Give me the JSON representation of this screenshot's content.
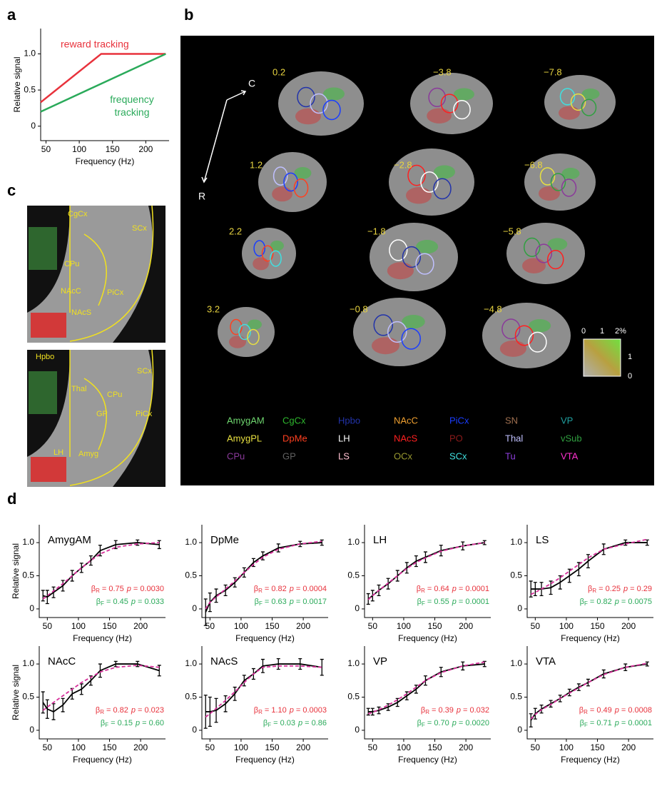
{
  "panel_labels": [
    "a",
    "b",
    "c",
    "d"
  ],
  "chart_data": [
    {
      "type": "line",
      "xlabel": "Frequency (Hz)",
      "ylabel": "Relative signal",
      "xlim": [
        42,
        235
      ],
      "ylim": [
        -0.2,
        1.35
      ],
      "xticks": [
        50,
        100,
        150,
        200
      ],
      "yticks": [
        0,
        0.5,
        {
          "value": 1,
          "label": "1.0"
        }
      ],
      "series": [
        {
          "name": "reward tracking",
          "color": "#e8323c",
          "x": [
            42,
            133,
            230
          ],
          "values": [
            0.33,
            1,
            1
          ]
        },
        {
          "name": "frequency tracking",
          "color": "#2aaa5a",
          "x": [
            42,
            230
          ],
          "values": [
            0.2,
            1
          ]
        }
      ]
    },
    {
      "type": "line",
      "title": "AmygAM",
      "xlabel": "Frequency (Hz)",
      "ylabel": "Relative signal",
      "x": [
        43,
        50,
        60,
        75,
        90,
        105,
        120,
        135,
        160,
        195,
        230
      ],
      "xlim": [
        37,
        240
      ],
      "ylim": [
        -0.13,
        1.27
      ],
      "xticks": [
        50,
        100,
        150,
        200
      ],
      "yticks": [
        0,
        0.5,
        {
          "value": 1,
          "label": "1.0"
        }
      ],
      "series": [
        {
          "color": "#000000",
          "values": [
            0.2,
            0.18,
            0.25,
            0.35,
            0.5,
            0.62,
            0.73,
            0.88,
            0.97,
            1.0,
            0.97
          ],
          "errors": [
            0.08,
            0.1,
            0.08,
            0.08,
            0.08,
            0.07,
            0.07,
            0.08,
            0.06,
            0.04,
            0.06
          ]
        },
        {
          "color": "#d6309a",
          "dashed": true,
          "values": [
            0.15,
            0.2,
            0.27,
            0.38,
            0.5,
            0.62,
            0.73,
            0.83,
            0.93,
            0.98,
            1.0
          ]
        }
      ],
      "stats": [
        {
          "color": "#e8323c",
          "beta": "β",
          "sub": "R",
          "value": "= 0.75",
          "p": "p",
          "p_value": "= 0.0030"
        },
        {
          "color": "#2aaa5a",
          "beta": "β",
          "sub": "F",
          "value": "= 0.45",
          "p": "p",
          "p_value": "= 0.033"
        }
      ]
    },
    {
      "type": "line",
      "title": "DpMe",
      "xlabel": "Frequency (Hz)",
      "x": [
        43,
        50,
        60,
        75,
        90,
        105,
        120,
        135,
        160,
        195,
        230
      ],
      "xlim": [
        37,
        240
      ],
      "ylim": [
        -0.13,
        1.27
      ],
      "xticks": [
        50,
        100,
        150,
        200
      ],
      "yticks": [
        0,
        0.5,
        {
          "value": 1,
          "label": "1.0"
        }
      ],
      "series": [
        {
          "color": "#000000",
          "values": [
            -0.05,
            0.1,
            0.2,
            0.28,
            0.4,
            0.55,
            0.7,
            0.8,
            0.92,
            0.98,
            1.0
          ],
          "errors": [
            0.2,
            0.14,
            0.1,
            0.08,
            0.07,
            0.07,
            0.06,
            0.06,
            0.06,
            0.04,
            0.04
          ]
        },
        {
          "color": "#d6309a",
          "dashed": true,
          "values": [
            0.0,
            0.1,
            0.18,
            0.3,
            0.42,
            0.55,
            0.67,
            0.78,
            0.9,
            0.98,
            1.02
          ]
        }
      ],
      "stats": [
        {
          "color": "#e8323c",
          "beta": "β",
          "sub": "R",
          "value": "= 0.82",
          "p": "p",
          "p_value": "= 0.0004"
        },
        {
          "color": "#2aaa5a",
          "beta": "β",
          "sub": "F",
          "value": "= 0.63",
          "p": "p",
          "p_value": "= 0.0017"
        }
      ]
    },
    {
      "type": "line",
      "title": "LH",
      "xlabel": "Frequency (Hz)",
      "x": [
        43,
        50,
        60,
        75,
        90,
        105,
        120,
        135,
        160,
        195,
        230
      ],
      "xlim": [
        37,
        240
      ],
      "ylim": [
        -0.13,
        1.27
      ],
      "xticks": [
        50,
        100,
        150,
        200
      ],
      "yticks": [
        0,
        0.5,
        {
          "value": 1,
          "label": "1.0"
        }
      ],
      "series": [
        {
          "color": "#000000",
          "values": [
            0.15,
            0.2,
            0.28,
            0.38,
            0.5,
            0.62,
            0.72,
            0.78,
            0.88,
            0.95,
            1.0
          ],
          "errors": [
            0.08,
            0.08,
            0.08,
            0.08,
            0.08,
            0.08,
            0.08,
            0.08,
            0.08,
            0.06,
            0.03
          ]
        },
        {
          "color": "#d6309a",
          "dashed": true,
          "values": [
            0.14,
            0.2,
            0.28,
            0.39,
            0.5,
            0.61,
            0.7,
            0.77,
            0.87,
            0.95,
            1.0
          ]
        }
      ],
      "stats": [
        {
          "color": "#e8323c",
          "beta": "β",
          "sub": "R",
          "value": "= 0.64",
          "p": "p",
          "p_value": "= 0.0001"
        },
        {
          "color": "#2aaa5a",
          "beta": "β",
          "sub": "F",
          "value": "= 0.55",
          "p": "p",
          "p_value": "= 0.0001"
        }
      ]
    },
    {
      "type": "line",
      "title": "LS",
      "xlabel": "Frequency (Hz)",
      "x": [
        43,
        50,
        60,
        75,
        90,
        105,
        120,
        135,
        160,
        195,
        230
      ],
      "xlim": [
        37,
        240
      ],
      "ylim": [
        -0.13,
        1.27
      ],
      "xticks": [
        50,
        100,
        150,
        200
      ],
      "yticks": [
        0,
        0.5,
        {
          "value": 1,
          "label": "1.0"
        }
      ],
      "series": [
        {
          "color": "#000000",
          "values": [
            0.3,
            0.3,
            0.3,
            0.32,
            0.4,
            0.5,
            0.6,
            0.72,
            0.9,
            1.0,
            1.0
          ],
          "errors": [
            0.12,
            0.1,
            0.1,
            0.1,
            0.1,
            0.1,
            0.1,
            0.1,
            0.08,
            0.04,
            0.04
          ]
        },
        {
          "color": "#d6309a",
          "dashed": true,
          "values": [
            0.22,
            0.25,
            0.3,
            0.38,
            0.47,
            0.57,
            0.67,
            0.77,
            0.9,
            0.98,
            1.05
          ]
        }
      ],
      "stats": [
        {
          "color": "#e8323c",
          "beta": "β",
          "sub": "R",
          "value": "= 0.25",
          "p": "p",
          "p_value": "= 0.29"
        },
        {
          "color": "#2aaa5a",
          "beta": "β",
          "sub": "F",
          "value": "= 0.82",
          "p": "p",
          "p_value": "= 0.0075"
        }
      ]
    },
    {
      "type": "line",
      "title": "NAcC",
      "xlabel": "Frequency (Hz)",
      "ylabel": "Relative signal",
      "x": [
        43,
        50,
        60,
        75,
        90,
        105,
        120,
        135,
        160,
        195,
        230
      ],
      "xlim": [
        37,
        240
      ],
      "ylim": [
        -0.13,
        1.27
      ],
      "xticks": [
        50,
        100,
        150,
        200
      ],
      "yticks": [
        0,
        0.5,
        {
          "value": 1,
          "label": "1.0"
        }
      ],
      "series": [
        {
          "color": "#000000",
          "values": [
            0.42,
            0.32,
            0.28,
            0.38,
            0.55,
            0.62,
            0.75,
            0.9,
            1.0,
            1.0,
            0.9
          ],
          "errors": [
            0.16,
            0.14,
            0.12,
            0.1,
            0.08,
            0.08,
            0.07,
            0.1,
            0.04,
            0.04,
            0.08
          ]
        },
        {
          "color": "#d6309a",
          "dashed": true,
          "values": [
            0.3,
            0.35,
            0.42,
            0.52,
            0.62,
            0.72,
            0.8,
            0.88,
            0.95,
            0.98,
            0.95
          ]
        }
      ],
      "stats": [
        {
          "color": "#e8323c",
          "beta": "β",
          "sub": "R",
          "value": "= 0.82",
          "p": "p",
          "p_value": "= 0.023"
        },
        {
          "color": "#2aaa5a",
          "beta": "β",
          "sub": "F",
          "value": "= 0.15",
          "p": "p",
          "p_value": "= 0.60"
        }
      ]
    },
    {
      "type": "line",
      "title": "NAcS",
      "xlabel": "Frequency (Hz)",
      "x": [
        43,
        50,
        60,
        75,
        90,
        105,
        120,
        135,
        160,
        195,
        230
      ],
      "xlim": [
        37,
        240
      ],
      "ylim": [
        -0.13,
        1.27
      ],
      "xticks": [
        50,
        100,
        150,
        200
      ],
      "yticks": [
        0,
        0.5,
        {
          "value": 1,
          "label": "1.0"
        }
      ],
      "series": [
        {
          "color": "#000000",
          "values": [
            0.28,
            0.28,
            0.3,
            0.4,
            0.55,
            0.75,
            0.85,
            0.97,
            1.0,
            1.0,
            0.95
          ],
          "errors": [
            0.25,
            0.22,
            0.18,
            0.12,
            0.1,
            0.08,
            0.08,
            0.1,
            0.08,
            0.08,
            0.12
          ]
        },
        {
          "color": "#d6309a",
          "dashed": true,
          "values": [
            0.2,
            0.25,
            0.33,
            0.45,
            0.58,
            0.72,
            0.85,
            0.95,
            0.97,
            0.97,
            0.95
          ]
        }
      ],
      "stats": [
        {
          "color": "#e8323c",
          "beta": "β",
          "sub": "R",
          "value": "= 1.10",
          "p": "p",
          "p_value": "= 0.0003"
        },
        {
          "color": "#2aaa5a",
          "beta": "β",
          "sub": "F",
          "value": "= 0.03",
          "p": "p",
          "p_value": "= 0.86"
        }
      ]
    },
    {
      "type": "line",
      "title": "VP",
      "xlabel": "Frequency (Hz)",
      "x": [
        43,
        50,
        60,
        75,
        90,
        105,
        120,
        135,
        160,
        195,
        230
      ],
      "xlim": [
        37,
        240
      ],
      "ylim": [
        -0.13,
        1.27
      ],
      "xticks": [
        50,
        100,
        150,
        200
      ],
      "yticks": [
        0,
        0.5,
        {
          "value": 1,
          "label": "1.0"
        }
      ],
      "series": [
        {
          "color": "#000000",
          "values": [
            0.28,
            0.28,
            0.3,
            0.35,
            0.42,
            0.52,
            0.62,
            0.75,
            0.88,
            0.97,
            1.0
          ],
          "errors": [
            0.05,
            0.05,
            0.05,
            0.05,
            0.06,
            0.06,
            0.06,
            0.07,
            0.07,
            0.06,
            0.04
          ]
        },
        {
          "color": "#d6309a",
          "dashed": true,
          "values": [
            0.25,
            0.27,
            0.31,
            0.38,
            0.46,
            0.55,
            0.65,
            0.75,
            0.87,
            0.97,
            1.03
          ]
        }
      ],
      "stats": [
        {
          "color": "#e8323c",
          "beta": "β",
          "sub": "R",
          "value": "= 0.39",
          "p": "p",
          "p_value": "= 0.032"
        },
        {
          "color": "#2aaa5a",
          "beta": "β",
          "sub": "F",
          "value": "= 0.70",
          "p": "p",
          "p_value": "= 0.0020"
        }
      ]
    },
    {
      "type": "line",
      "title": "VTA",
      "xlabel": "Frequency (Hz)",
      "x": [
        43,
        50,
        60,
        75,
        90,
        105,
        120,
        135,
        160,
        195,
        230
      ],
      "xlim": [
        37,
        240
      ],
      "ylim": [
        -0.13,
        1.27
      ],
      "xticks": [
        50,
        100,
        150,
        200
      ],
      "yticks": [
        0,
        0.5,
        {
          "value": 1,
          "label": "1.0"
        }
      ],
      "series": [
        {
          "color": "#000000",
          "values": [
            0.15,
            0.25,
            0.32,
            0.4,
            0.48,
            0.57,
            0.65,
            0.72,
            0.85,
            0.95,
            1.0
          ],
          "errors": [
            0.1,
            0.08,
            0.06,
            0.05,
            0.05,
            0.05,
            0.05,
            0.05,
            0.06,
            0.05,
            0.03
          ]
        },
        {
          "color": "#d6309a",
          "dashed": true,
          "values": [
            0.17,
            0.24,
            0.31,
            0.39,
            0.48,
            0.56,
            0.64,
            0.72,
            0.84,
            0.95,
            1.01
          ]
        }
      ],
      "stats": [
        {
          "color": "#e8323c",
          "beta": "β",
          "sub": "R",
          "value": "= 0.49",
          "p": "p",
          "p_value": "= 0.0008"
        },
        {
          "color": "#2aaa5a",
          "beta": "β",
          "sub": "F",
          "value": "= 0.71",
          "p": "p",
          "p_value": "= 0.0001"
        }
      ]
    }
  ],
  "slices": [
    "0.2",
    "−3.8",
    "−7.8",
    "1.2",
    "−2.8",
    "−6.8",
    "2.2",
    "−1.8",
    "−5.8",
    "3.2",
    "−0.8",
    "−4.8"
  ],
  "orientation": [
    "C",
    "R"
  ],
  "regions": [
    {
      "name": "AmygAM",
      "color": "#6fd66f"
    },
    {
      "name": "CgCx",
      "color": "#2eb82e"
    },
    {
      "name": "Hpbo",
      "color": "#2233aa"
    },
    {
      "name": "NAcC",
      "color": "#f0a030"
    },
    {
      "name": "PiCx",
      "color": "#1a3dff"
    },
    {
      "name": "SN",
      "color": "#a07050"
    },
    {
      "name": "VP",
      "color": "#20a0a0"
    },
    {
      "name": "AmygPL",
      "color": "#e8e040"
    },
    {
      "name": "DpMe",
      "color": "#ff4020"
    },
    {
      "name": "LH",
      "color": "#ffffff"
    },
    {
      "name": "NAcS",
      "color": "#ff2020"
    },
    {
      "name": "PO",
      "color": "#8b1a1a"
    },
    {
      "name": "Thal",
      "color": "#c0c0ff"
    },
    {
      "name": "vSub",
      "color": "#30a040"
    },
    {
      "name": "CPu",
      "color": "#8a3a9a"
    },
    {
      "name": "GP",
      "color": "#606060"
    },
    {
      "name": "LS",
      "color": "#ffc0d0"
    },
    {
      "name": "OCx",
      "color": "#9a9a30"
    },
    {
      "name": "SCx",
      "color": "#40e0e0"
    },
    {
      "name": "Tu",
      "color": "#9040e0"
    },
    {
      "name": "VTA",
      "color": "#ff30d0"
    }
  ],
  "colorbar": {
    "top": [
      "0",
      "1",
      "2%"
    ],
    "side": [
      "1",
      "0"
    ]
  },
  "panel_c": {
    "top": [
      "CgCx",
      "SCx",
      "CPu",
      "NAcC",
      "PiCx",
      "NAcS"
    ],
    "bottom": [
      "Hpbo",
      "SCx",
      "Thal",
      "CPu",
      "GP",
      "PiCx",
      "LH",
      "Amyg"
    ]
  }
}
